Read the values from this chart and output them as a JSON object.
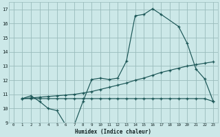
{
  "xlabel": "Humidex (Indice chaleur)",
  "bg_color": "#cce8e8",
  "grid_color": "#99bbbb",
  "line_color": "#1a5555",
  "xlim": [
    -0.5,
    23.5
  ],
  "ylim": [
    9,
    17.5
  ],
  "xticks": [
    0,
    1,
    2,
    3,
    4,
    5,
    6,
    7,
    8,
    9,
    10,
    11,
    12,
    13,
    14,
    15,
    16,
    17,
    18,
    19,
    20,
    21,
    22,
    23
  ],
  "yticks": [
    9,
    10,
    11,
    12,
    13,
    14,
    15,
    16,
    17
  ],
  "line1_x": [
    1,
    2,
    3,
    4,
    5,
    6,
    7,
    8,
    9,
    10,
    11,
    12,
    13,
    14,
    15,
    16,
    17,
    19,
    20,
    21,
    22,
    23
  ],
  "line1_y": [
    10.7,
    10.9,
    10.5,
    10.0,
    9.85,
    8.85,
    8.85,
    10.5,
    12.05,
    12.15,
    12.05,
    12.15,
    13.35,
    16.55,
    16.65,
    17.05,
    16.65,
    15.8,
    14.6,
    12.8,
    12.1,
    10.5
  ],
  "line2_x": [
    1,
    2,
    3,
    4,
    5,
    6,
    7,
    8,
    9,
    10,
    11,
    12,
    13,
    14,
    15,
    16,
    17,
    18,
    19,
    20,
    21,
    22,
    23
  ],
  "line2_y": [
    10.7,
    10.75,
    10.8,
    10.85,
    10.9,
    10.95,
    11.0,
    11.1,
    11.2,
    11.35,
    11.5,
    11.65,
    11.8,
    12.0,
    12.15,
    12.35,
    12.55,
    12.7,
    12.85,
    13.0,
    13.1,
    13.2,
    13.3
  ],
  "line3_x": [
    1,
    2,
    3,
    4,
    5,
    6,
    7,
    8,
    9,
    10,
    11,
    12,
    13,
    14,
    15,
    16,
    17,
    18,
    19,
    20,
    21,
    22,
    23
  ],
  "line3_y": [
    10.7,
    10.7,
    10.7,
    10.7,
    10.7,
    10.7,
    10.7,
    10.7,
    10.7,
    10.7,
    10.7,
    10.7,
    10.7,
    10.7,
    10.7,
    10.7,
    10.7,
    10.7,
    10.7,
    10.7,
    10.7,
    10.7,
    10.5
  ]
}
